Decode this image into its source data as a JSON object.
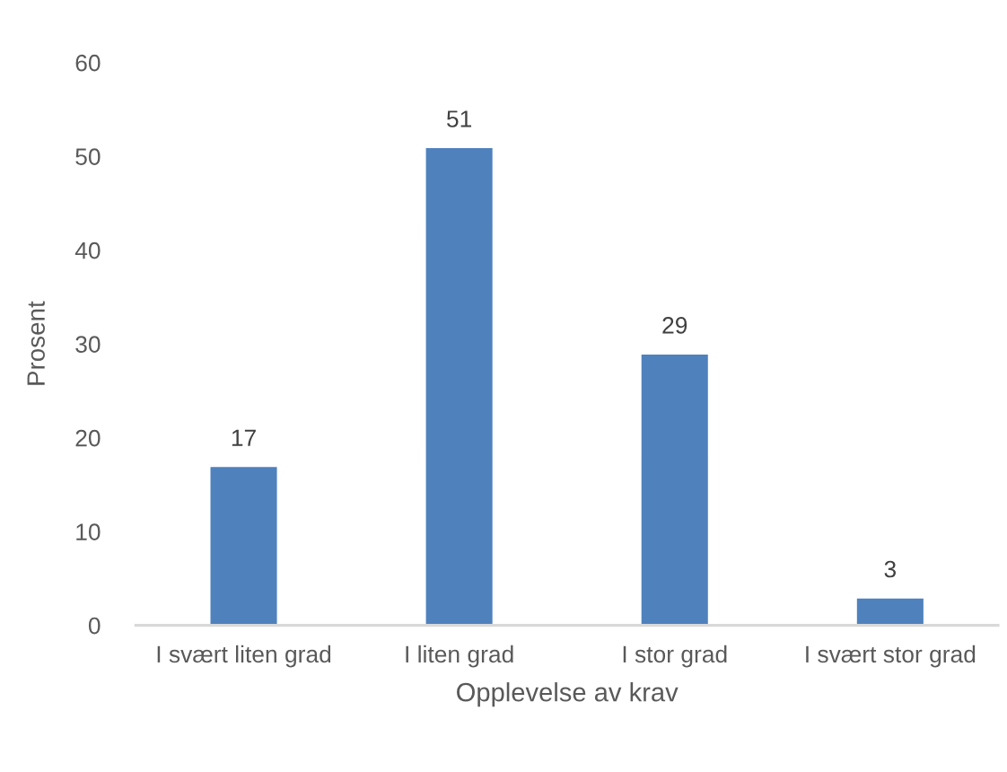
{
  "chart_data": {
    "type": "bar",
    "xlabel": "Opplevelse av krav",
    "ylabel": "Prosent",
    "categories": [
      "I svært liten grad",
      "I liten grad",
      "I stor grad",
      "I svært stor grad"
    ],
    "values": [
      17,
      51,
      29,
      3
    ],
    "color": "#4f81bd",
    "ylim": [
      0,
      60
    ],
    "yticks": [
      0,
      10,
      20,
      30,
      40,
      50,
      60
    ],
    "data_labels": true
  }
}
